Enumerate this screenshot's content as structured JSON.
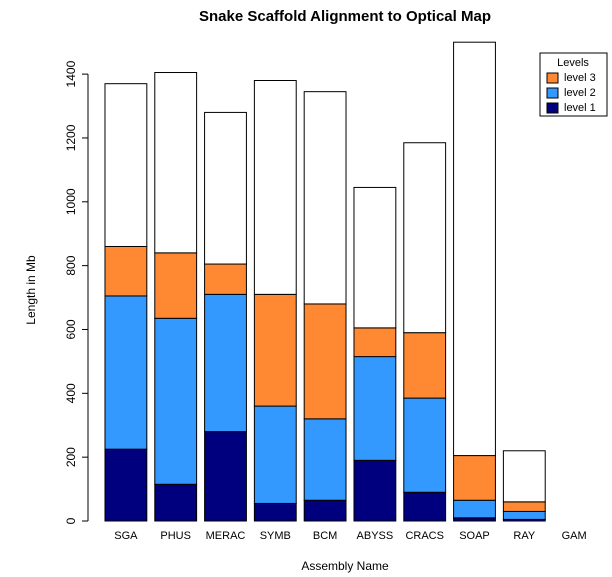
{
  "chart_data": {
    "type": "stacked_bar",
    "title": "Snake Scaffold Alignment to Optical Map",
    "x_label": "Assembly Name",
    "y_label": "Length in Mb",
    "categories": [
      "SGA",
      "PHUS",
      "MERAC",
      "SYMB",
      "BCM",
      "ABYSS",
      "CRACS",
      "SOAP",
      "RAY",
      "GAM"
    ],
    "series": [
      {
        "name": "level 1",
        "color": "#00007f",
        "values": [
          225,
          115,
          280,
          55,
          65,
          190,
          90,
          10,
          5,
          0
        ]
      },
      {
        "name": "level 2",
        "color": "#3399ff",
        "values": [
          480,
          520,
          430,
          305,
          255,
          325,
          295,
          55,
          25,
          0
        ]
      },
      {
        "name": "level 3",
        "color": "#ff8833",
        "values": [
          155,
          205,
          95,
          350,
          360,
          90,
          205,
          140,
          30,
          0
        ]
      },
      {
        "color": "#ffffff",
        "values": [
          510,
          565,
          475,
          670,
          665,
          440,
          595,
          1295,
          160,
          0
        ]
      }
    ],
    "legend_title": "Levels",
    "legend_position": "top-right",
    "ylim": [
      0,
      1510
    ],
    "yticks": [
      0,
      200,
      400,
      600,
      800,
      1000,
      1200,
      1400
    ]
  }
}
